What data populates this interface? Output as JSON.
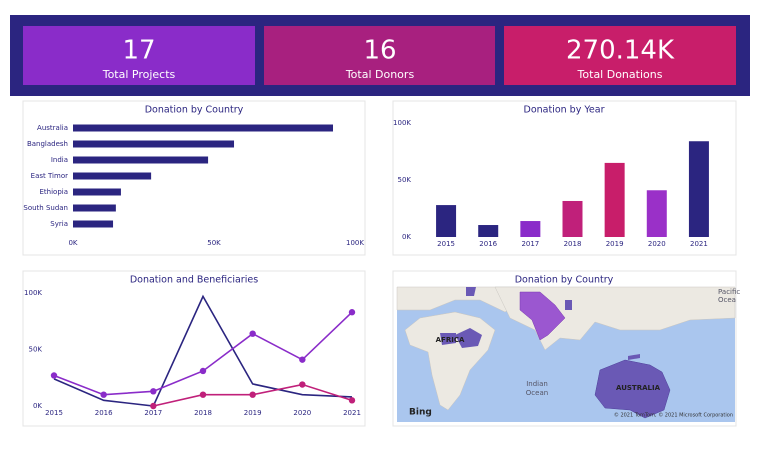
{
  "kpis": [
    {
      "value": "17",
      "label": "Total Projects"
    },
    {
      "value": "16",
      "label": "Total Donors"
    },
    {
      "value": "270.14K",
      "label": "Total Donations"
    }
  ],
  "chart_data": [
    {
      "type": "bar",
      "orientation": "horizontal",
      "title": "Donation by Country",
      "categories": [
        "Australia",
        "Bangladesh",
        "India",
        "East Timor",
        "Ethiopia",
        "South Sudan",
        "Syria"
      ],
      "values": [
        92200,
        57100,
        47900,
        27700,
        17000,
        15200,
        14200
      ],
      "color": "#2b2580",
      "xlim": [
        0,
        100000
      ],
      "xticks": [
        {
          "value": 0,
          "label": "0K"
        },
        {
          "value": 50000,
          "label": "50K"
        },
        {
          "value": 100000,
          "label": "100K"
        }
      ]
    },
    {
      "type": "bar",
      "orientation": "vertical",
      "title": "Donation by Year",
      "categories": [
        "2015",
        "2016",
        "2017",
        "2018",
        "2019",
        "2020",
        "2021"
      ],
      "values": [
        28000,
        10500,
        14000,
        31600,
        65000,
        41000,
        84000
      ],
      "colors": [
        "#2b2580",
        "#2b2580",
        "#8a2cc9",
        "#c0207a",
        "#c81e6a",
        "#9a30c8",
        "#2b2580"
      ],
      "ylim": [
        0,
        100000
      ],
      "yticks": [
        {
          "value": 0,
          "label": "0K"
        },
        {
          "value": 50000,
          "label": "50K"
        },
        {
          "value": 100000,
          "label": "100K"
        }
      ]
    },
    {
      "type": "line",
      "title": "Donation and Beneficiaries",
      "categories": [
        "2015",
        "2016",
        "2017",
        "2018",
        "2019",
        "2020",
        "2021"
      ],
      "series": [
        {
          "color": "#2b2580",
          "values": [
            24000,
            5000,
            0,
            97000,
            19500,
            10000,
            8000
          ],
          "markers": false
        },
        {
          "color": "#8a2cc9",
          "values": [
            27000,
            10000,
            13000,
            31000,
            64000,
            41000,
            83000
          ],
          "markers": true
        },
        {
          "color": "#c0207a",
          "values": [
            null,
            null,
            0,
            10000,
            10000,
            19000,
            5000
          ],
          "markers": true
        }
      ],
      "ylim": [
        0,
        100000
      ],
      "yticks": [
        {
          "value": 0,
          "label": "0K"
        },
        {
          "value": 50000,
          "label": "50K"
        },
        {
          "value": 100000,
          "label": "100K"
        }
      ]
    }
  ],
  "map": {
    "title": "Donation by Country",
    "labels": [
      "AFRICA",
      "AUSTRALIA",
      "Indian",
      "Ocean",
      "Pacific",
      "Ocea"
    ],
    "logo": "Bing",
    "credit": "© 2021 TomTom, © 2021 Microsoft Corporation"
  }
}
